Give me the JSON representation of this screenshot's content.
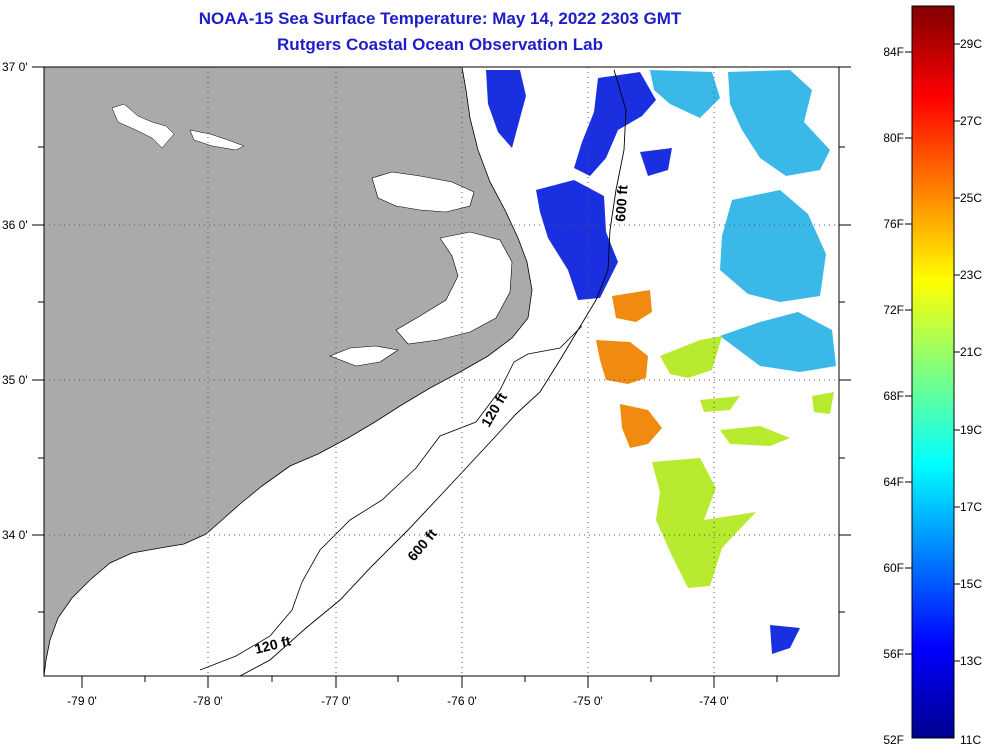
{
  "title": {
    "line1": "NOAA-15 Sea Surface Temperature:  May 14, 2022 2303 GMT",
    "line2": "Rutgers Coastal Ocean Observation Lab"
  },
  "axes": {
    "lon_labels": [
      "-79 0'",
      "-78 0'",
      "-77 0'",
      "-76 0'",
      "-75 0'",
      "-74 0'"
    ],
    "lat_labels": [
      "37 0'",
      "36 0'",
      "35 0'",
      "34 0'"
    ]
  },
  "contours": {
    "deep": "600 ft",
    "shelf": "120 ft"
  },
  "colorbar": {
    "fahrenheit_labels": [
      "84F",
      "80F",
      "76F",
      "72F",
      "68F",
      "64F",
      "60F",
      "56F",
      "52F"
    ],
    "celsius_labels": [
      "29C",
      "27C",
      "25C",
      "23C",
      "21C",
      "19C",
      "17C",
      "15C",
      "13C",
      "11C"
    ]
  },
  "colors": {
    "title": "#1e1ec8",
    "land": "#aaaaaa",
    "ocean": "#ffffff",
    "colormap": [
      "#00008f",
      "#0000ff",
      "#00ffff",
      "#ffff00",
      "#ff8000",
      "#ff0000",
      "#800000"
    ]
  },
  "sst_patches": [
    {
      "region": "offshore-north",
      "color": "#1a30e0"
    },
    {
      "region": "gulfstream-east",
      "color": "#3ab8e8"
    },
    {
      "region": "warm-core",
      "color": "#f08a10"
    },
    {
      "region": "shelf-south",
      "color": "#b8ea30"
    }
  ]
}
